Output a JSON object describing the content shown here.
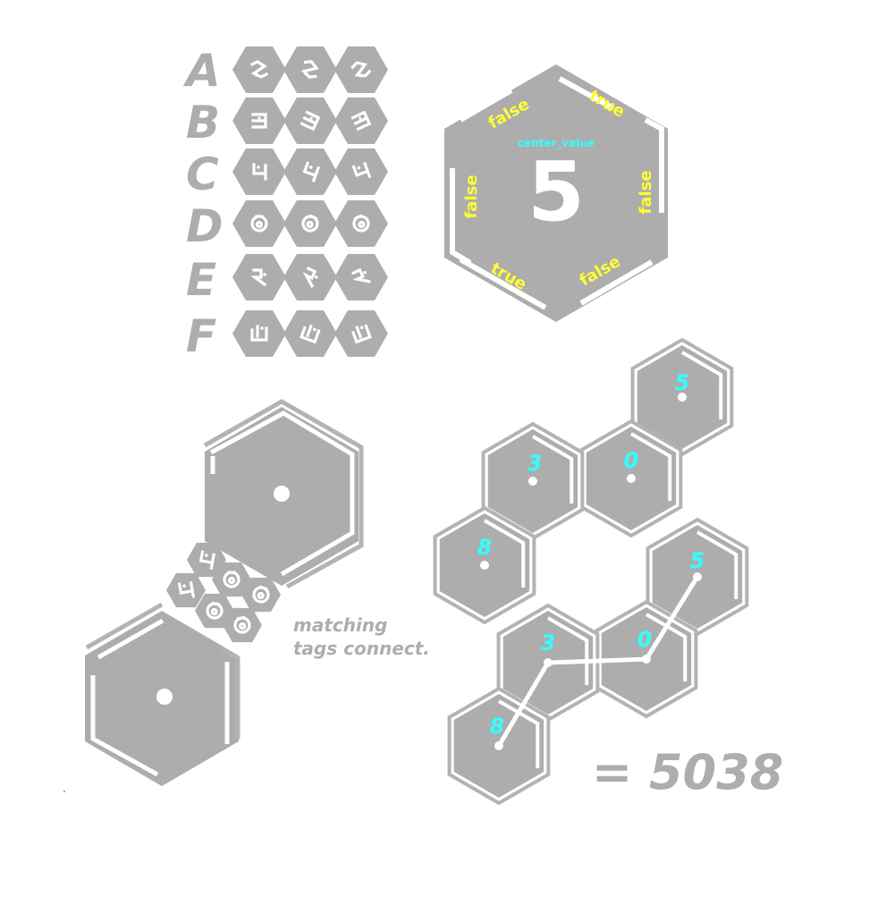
{
  "palette": {
    "hex_fill": "#adadad",
    "frame": "#b3b3b3",
    "tag_text": "#ffff33",
    "accent_cyan": "#33ffff",
    "glyph": "#ffffff",
    "background": "#ffffff"
  },
  "legend": {
    "rows": [
      {
        "letter": "A",
        "glyphs": [
          "glyph-icon",
          "glyph-icon",
          "glyph-icon"
        ]
      },
      {
        "letter": "B",
        "glyphs": [
          "glyph-icon",
          "glyph-icon",
          "glyph-icon"
        ]
      },
      {
        "letter": "C",
        "glyphs": [
          "glyph-icon",
          "glyph-icon",
          "glyph-icon"
        ]
      },
      {
        "letter": "D",
        "glyphs": [
          "glyph-icon",
          "glyph-icon",
          "glyph-icon"
        ]
      },
      {
        "letter": "E",
        "glyphs": [
          "glyph-icon",
          "glyph-icon",
          "glyph-icon"
        ]
      },
      {
        "letter": "F",
        "glyphs": [
          "glyph-icon",
          "glyph-icon",
          "glyph-icon"
        ]
      }
    ]
  },
  "big_tile": {
    "center_label": "center_value",
    "center_value": "5",
    "edge_tags": {
      "top_left": "false",
      "top_right": "true",
      "right": "false",
      "bottom_right": "false",
      "bottom_left": "true",
      "left": "false"
    }
  },
  "connection_example": {
    "caption_line1": "matching",
    "caption_line2": "tags connect."
  },
  "chain_unlinked": {
    "cells": [
      "5",
      "0",
      "3",
      "8"
    ]
  },
  "chain_linked": {
    "cells": [
      "5",
      "0",
      "3",
      "8"
    ],
    "result": "= 5038"
  }
}
